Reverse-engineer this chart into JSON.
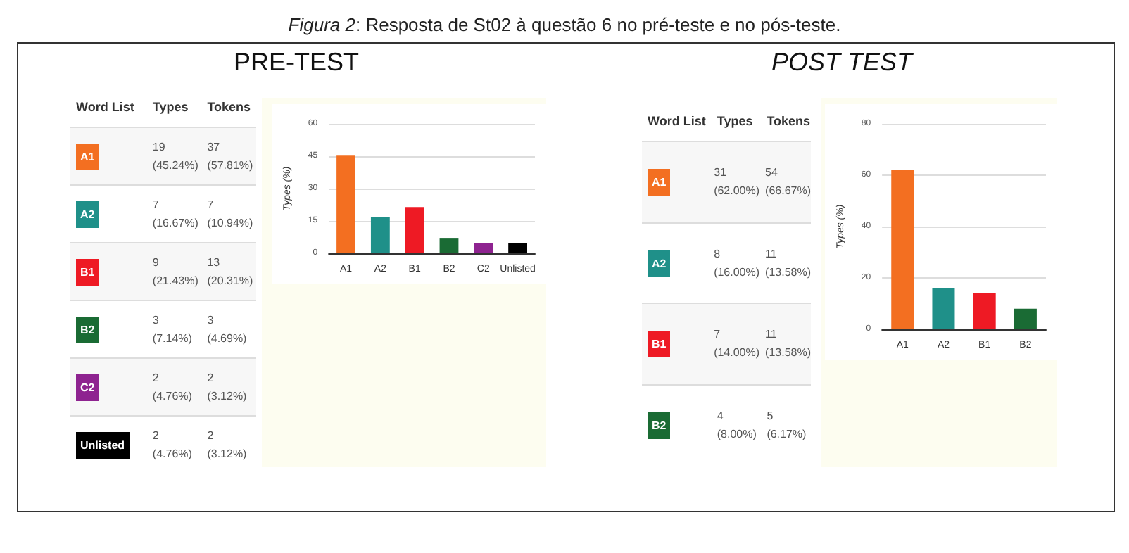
{
  "chart_data": [
    {
      "type": "other",
      "title": "Figura 2: Resposta de St02 à questão 6 no pré-teste e no pós-teste."
    },
    {
      "type": "other",
      "title": "PRE-TEST",
      "categories": [
        "Word List",
        "Types",
        "Tokens"
      ],
      "y_categories": [
        "A1",
        "A2",
        "B1",
        "B2",
        "C2",
        "Unlisted"
      ],
      "cell_labels": [
        [
          "19 (45.24%)",
          "37 (57.81%)"
        ],
        [
          "7 (16.67%)",
          "7 (10.94%)"
        ],
        [
          "9 (21.43%)",
          "13 (20.31%)"
        ],
        [
          "3 (7.14%)",
          "3 (4.69%)"
        ],
        [
          "2 (4.76%)",
          "2 (3.12%)"
        ],
        [
          "2 (4.76%)",
          "2 (3.12%)"
        ]
      ]
    },
    {
      "type": "bar",
      "categories": [
        "A1",
        "A2",
        "B1",
        "B2",
        "C2",
        "Unlisted"
      ],
      "values": [
        45.24,
        16.67,
        21.43,
        7.14,
        4.76,
        4.76
      ],
      "colors": [
        "#f36f21",
        "#1f9089",
        "#ee1a24",
        "#1a6b34",
        "#8e2390",
        "#000000"
      ],
      "ylabel": "Types (%)",
      "ylim": [
        0,
        60
      ],
      "yticks": [
        0,
        15,
        30,
        45,
        60
      ],
      "grid": "y"
    },
    {
      "type": "other",
      "title": "POST TEST",
      "categories": [
        "Word List",
        "Types",
        "Tokens"
      ],
      "y_categories": [
        "A1",
        "A2",
        "B1",
        "B2"
      ],
      "cell_labels": [
        [
          "31 (62.00%)",
          "54 (66.67%)"
        ],
        [
          "8 (16.00%)",
          "11 (13.58%)"
        ],
        [
          "7 (14.00%)",
          "11 (13.58%)"
        ],
        [
          "4 (8.00%)",
          "5 (6.17%)"
        ]
      ]
    },
    {
      "type": "bar",
      "categories": [
        "A1",
        "A2",
        "B1",
        "B2"
      ],
      "values": [
        62,
        16,
        14,
        8
      ],
      "colors": [
        "#f36f21",
        "#1f9089",
        "#ee1a24",
        "#1a6b34"
      ],
      "ylabel": "Types (%)",
      "ylim": [
        0,
        80
      ],
      "yticks": [
        0,
        20,
        40,
        60,
        80
      ],
      "grid": "y"
    }
  ]
}
